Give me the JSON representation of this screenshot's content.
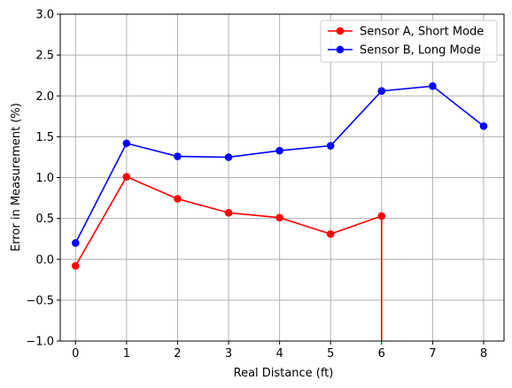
{
  "chart_data": {
    "type": "line",
    "title": "",
    "xlabel": "Real Distance (ft)",
    "ylabel": "Error in Measurement (%)",
    "xlim": [
      -0.3,
      8.4
    ],
    "ylim": [
      -1.0,
      3.0
    ],
    "xticks": [
      "0",
      "1",
      "2",
      "3",
      "4",
      "5",
      "6",
      "7",
      "8"
    ],
    "yticks": [
      "−1.0",
      "−0.5",
      "0.0",
      "0.5",
      "1.0",
      "1.5",
      "2.0",
      "2.5",
      "3.0"
    ],
    "grid": true,
    "legend_position": "top-right",
    "series": [
      {
        "name": "Sensor A, Short Mode",
        "color": "#ff0000",
        "x": [
          0,
          1,
          2,
          3,
          4,
          5,
          6
        ],
        "y": [
          -0.08,
          1.01,
          0.74,
          0.57,
          0.51,
          0.31,
          0.53
        ],
        "tail_to_bottom_at_x": 6
      },
      {
        "name": "Sensor B, Long Mode",
        "color": "#0000ff",
        "x": [
          0,
          1,
          2,
          3,
          4,
          5,
          6,
          7,
          8
        ],
        "y": [
          0.2,
          1.42,
          1.26,
          1.25,
          1.33,
          1.39,
          2.06,
          2.12,
          1.63
        ]
      }
    ]
  }
}
